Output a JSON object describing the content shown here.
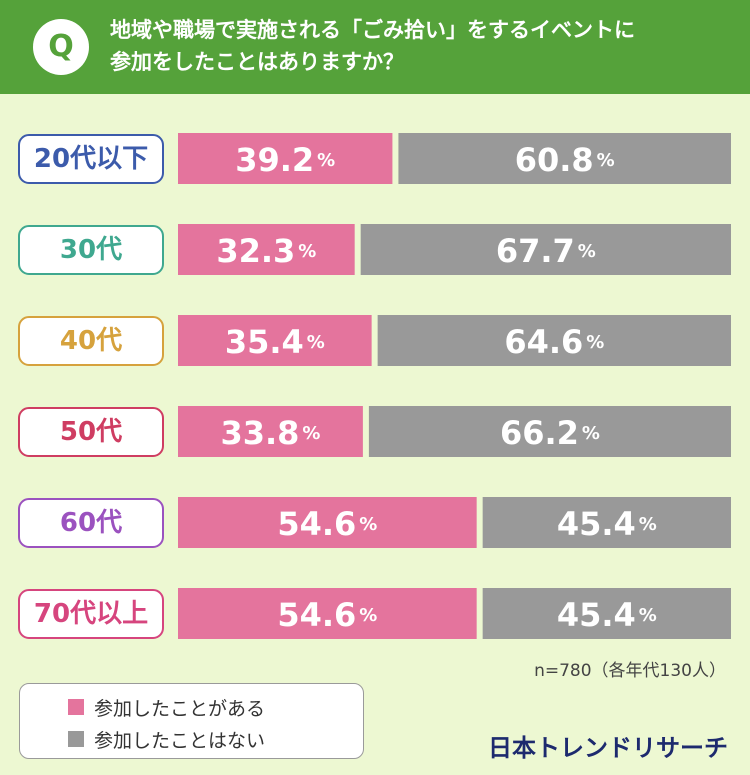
{
  "header": {
    "badge": "Q",
    "question_line1": "地域や職場で実施される「ごみ拾い」をするイベントに",
    "question_line2": "参加をしたことはありますか？"
  },
  "chart_data": {
    "type": "bar",
    "stacked": true,
    "orientation": "horizontal",
    "title": "地域や職場で実施される「ごみ拾い」をするイベントに参加をしたことはありますか？",
    "categories": [
      "20代以下",
      "30代",
      "40代",
      "50代",
      "60代",
      "70代以上"
    ],
    "category_colors": [
      "#3c5bab",
      "#3fa88f",
      "#d6a23d",
      "#cf3d62",
      "#9b52bf",
      "#d6457e"
    ],
    "series": [
      {
        "name": "参加したことがある",
        "color": "#e4749d",
        "values": [
          39.2,
          32.3,
          35.4,
          33.8,
          54.6,
          54.6
        ]
      },
      {
        "name": "参加したことはない",
        "color": "#999999",
        "values": [
          60.8,
          67.7,
          64.6,
          66.2,
          45.4,
          45.4
        ]
      }
    ],
    "unit": "%",
    "xlim": [
      0,
      100
    ],
    "grid": false,
    "legend_position": "bottom-left"
  },
  "note": "n=780（各年代130人）",
  "brand": "日本トレンドリサーチ"
}
